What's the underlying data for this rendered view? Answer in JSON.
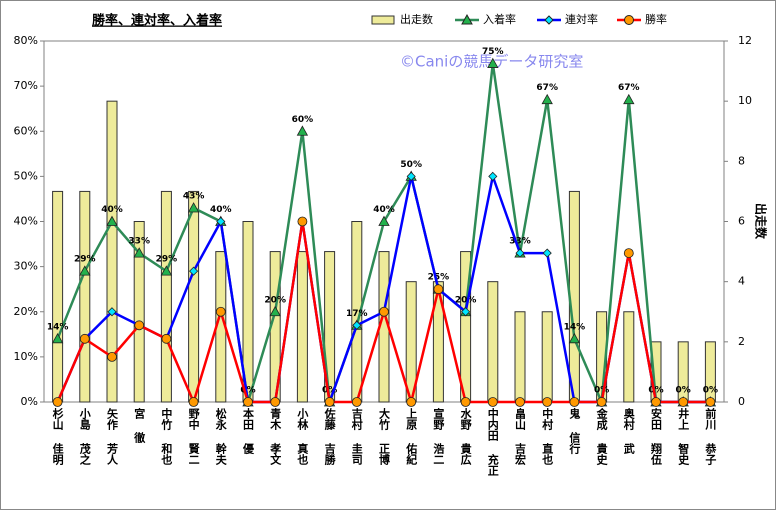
{
  "chart_data": {
    "type": "bar_line",
    "title": "勝率、連対率、入着率",
    "watermark": "©Caniの競馬データ研究室",
    "y2label": "出走数",
    "categories": [
      "杉山 佳明",
      "小島 茂之",
      "矢作 芳人",
      "宮 徹",
      "中竹 和也",
      "野中 賢二",
      "松永 幹夫",
      "本田 優",
      "青木 孝文",
      "小林 真也",
      "佐藤 吉勝",
      "吉村 圭司",
      "大竹 正博",
      "上原 佑紀",
      "宣野 浩二",
      "水野 貴広",
      "中内田 充正",
      "畠山 吉宏",
      "中村 直也",
      "鬼 信行",
      "金成 貴史",
      "奥村 武",
      "安田 翔伍",
      "井上 智史",
      "前川 恭子"
    ],
    "ylim": [
      0,
      80
    ],
    "yticks": [
      {
        "value": 0,
        "label": "0%"
      },
      {
        "value": 10,
        "label": "10%"
      },
      {
        "value": 20,
        "label": "20%"
      },
      {
        "value": 30,
        "label": "30%"
      },
      {
        "value": 40,
        "label": "40%"
      },
      {
        "value": 50,
        "label": "50%"
      },
      {
        "value": 60,
        "label": "60%"
      },
      {
        "value": 70,
        "label": "70%"
      },
      {
        "value": 80,
        "label": "80%"
      }
    ],
    "y2lim": [
      0,
      12
    ],
    "y2ticks": [
      0,
      2,
      4,
      6,
      8,
      10,
      12
    ],
    "series": [
      {
        "name": "出走数",
        "type": "bar",
        "axis": "y2",
        "color": "#eeeb9a",
        "values": [
          7,
          7,
          10,
          6,
          7,
          7,
          5,
          6,
          5,
          5,
          5,
          6,
          5,
          4,
          4,
          5,
          4,
          3,
          3,
          7,
          3,
          3,
          2,
          2,
          2
        ]
      },
      {
        "name": "入着率",
        "type": "line",
        "color": "#2e8b57",
        "marker": "triangle",
        "marker_color": "#22b14c",
        "values": [
          14,
          29,
          40,
          33,
          29,
          43,
          40,
          0,
          20,
          60,
          0,
          17,
          40,
          50,
          25,
          20,
          75,
          33,
          67,
          14,
          0,
          67,
          0,
          0,
          0
        ],
        "value_labels": [
          "14%",
          "29%",
          "40%",
          "33%",
          "29%",
          "43%",
          "40%",
          "0%",
          "20%",
          "60%",
          "0%",
          "17%",
          "40%",
          "50%",
          "25%",
          "20%",
          "75%",
          "33%",
          "67%",
          "14%",
          "0%",
          "67%",
          "0%",
          "0%",
          "0%"
        ]
      },
      {
        "name": "連対率",
        "type": "line",
        "color": "#0000ff",
        "marker": "diamond",
        "marker_color": "#00e5ff",
        "values": [
          0,
          14,
          20,
          17,
          14,
          29,
          40,
          0,
          0,
          40,
          0,
          17,
          20,
          50,
          25,
          20,
          50,
          33,
          33,
          0,
          0,
          33,
          0,
          0,
          0
        ]
      },
      {
        "name": "勝率",
        "type": "line",
        "color": "#ff0000",
        "marker": "circle",
        "marker_color": "#ff9900",
        "values": [
          0,
          14,
          10,
          17,
          14,
          0,
          20,
          0,
          0,
          40,
          0,
          0,
          20,
          0,
          25,
          0,
          0,
          0,
          0,
          0,
          0,
          33,
          0,
          0,
          0
        ]
      }
    ]
  }
}
